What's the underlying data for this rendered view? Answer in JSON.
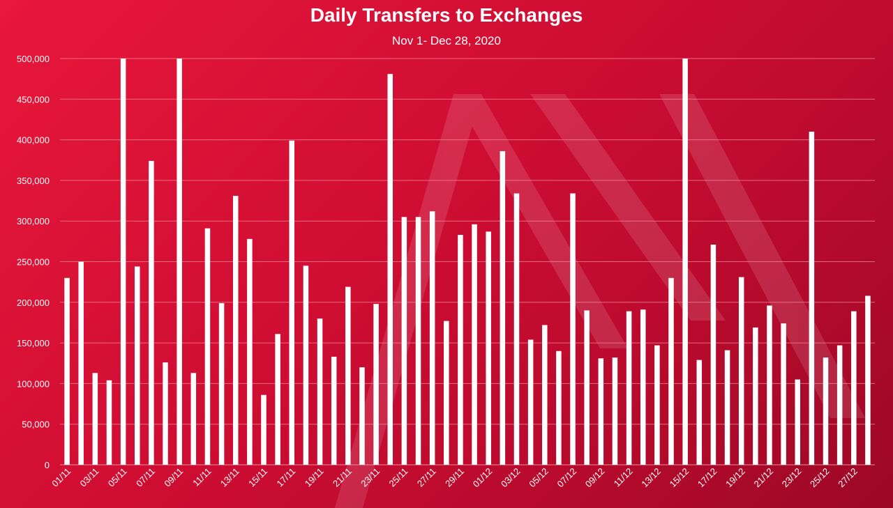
{
  "chart_data": {
    "type": "bar",
    "title": "Daily Transfers to Exchanges",
    "subtitle": "Nov 1- Dec 28, 2020",
    "xlabel": "",
    "ylabel": "",
    "ylim": [
      0,
      500000
    ],
    "y_ticks": [
      0,
      50000,
      100000,
      150000,
      200000,
      250000,
      300000,
      350000,
      400000,
      450000,
      500000
    ],
    "y_tick_labels": [
      "0",
      "50,000",
      "100,000",
      "150,000",
      "200,000",
      "250,000",
      "300,000",
      "350,000",
      "400,000",
      "450,000",
      "500,000"
    ],
    "grid": true,
    "legend": "none",
    "categories": [
      "01/11",
      "02/11",
      "03/11",
      "04/11",
      "05/11",
      "06/11",
      "07/11",
      "08/11",
      "09/11",
      "10/11",
      "11/11",
      "12/11",
      "13/11",
      "14/11",
      "15/11",
      "16/11",
      "17/11",
      "18/11",
      "19/11",
      "20/11",
      "21/11",
      "22/11",
      "23/11",
      "24/11",
      "25/11",
      "26/11",
      "27/11",
      "28/11",
      "29/11",
      "30/11",
      "01/12",
      "02/12",
      "03/12",
      "04/12",
      "05/12",
      "06/12",
      "07/12",
      "08/12",
      "09/12",
      "10/12",
      "11/12",
      "12/12",
      "13/12",
      "14/12",
      "15/12",
      "16/12",
      "17/12",
      "18/12",
      "19/12",
      "20/12",
      "21/12",
      "22/12",
      "23/12",
      "24/12",
      "25/12",
      "26/12",
      "27/12",
      "28/12"
    ],
    "x_tick_labels": [
      "01/11",
      "03/11",
      "05/11",
      "07/11",
      "09/11",
      "11/11",
      "13/11",
      "15/11",
      "17/11",
      "19/11",
      "21/11",
      "23/11",
      "25/11",
      "27/11",
      "29/11",
      "01/12",
      "03/12",
      "05/12",
      "07/12",
      "09/12",
      "11/12",
      "13/12",
      "15/12",
      "17/12",
      "19/12",
      "21/12",
      "23/12",
      "25/12",
      "27/12"
    ],
    "values": [
      230000,
      250000,
      113000,
      104000,
      500000,
      244000,
      374000,
      126000,
      500000,
      113000,
      291000,
      199000,
      331000,
      278000,
      86000,
      161000,
      399000,
      245000,
      180000,
      133000,
      219000,
      120000,
      198000,
      481000,
      305000,
      305000,
      312000,
      177000,
      283000,
      296000,
      287000,
      386000,
      334000,
      154000,
      172000,
      140000,
      334000,
      190000,
      131000,
      132000,
      189000,
      191000,
      147000,
      230000,
      500000,
      129000,
      271000,
      141000,
      231000,
      169000,
      196000,
      174000,
      105000,
      410000,
      132000,
      147000,
      189000,
      208000
    ],
    "colors": {
      "background": "#d0102f",
      "bar": "#ffffff",
      "gridline": "#f08a9c",
      "text": "#ffffff"
    }
  }
}
